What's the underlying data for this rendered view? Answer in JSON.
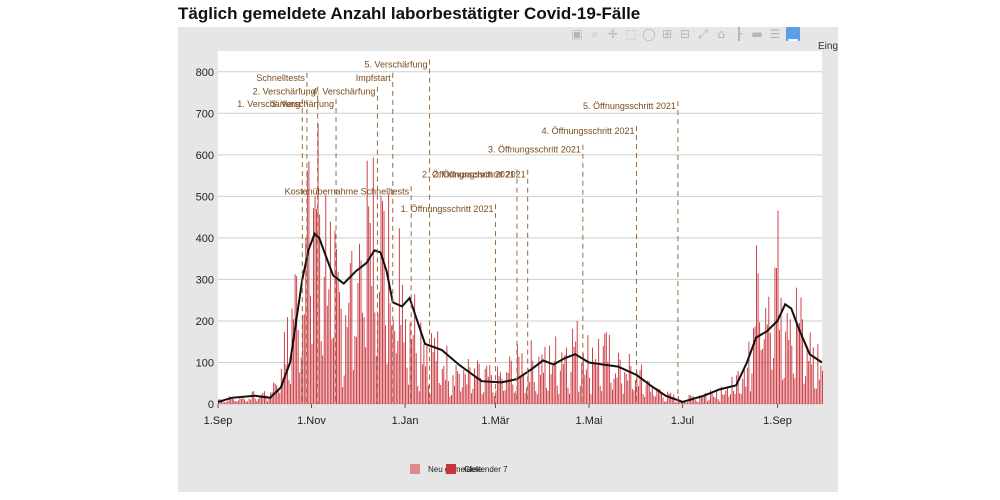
{
  "title": "Täglich gemeldete Anzahl laborbestätigter Covid-19-Fälle",
  "toolbar": {
    "icons": [
      "camera-icon",
      "zoom-icon",
      "pan-icon",
      "box-select-icon",
      "lasso-icon",
      "zoom-in-icon",
      "zoom-out-icon",
      "autoscale-icon",
      "home-icon",
      "spike-lines-icon",
      "hover-closest-icon",
      "hover-compare-icon",
      "plotly-logo-icon"
    ],
    "label": "Eing"
  },
  "colors": {
    "bar": "#c9343c",
    "line": "#111111",
    "annotation": "#9a6a3a",
    "grid": "#cfcfcf",
    "frame": "#e6e6e6"
  },
  "chart_data": {
    "type": "bar",
    "title": "Täglich gemeldete Anzahl laborbestätigter Covid-19-Fälle",
    "x_start": "2020-09-01",
    "x_end": "2021-09-30",
    "ylim": [
      0,
      850
    ],
    "y_ticks": [
      0,
      100,
      200,
      300,
      400,
      500,
      600,
      700,
      800
    ],
    "x_ticks": [
      {
        "date": "2020-09-01",
        "label": "1.Sep"
      },
      {
        "date": "2020-11-01",
        "label": "1.Nov"
      },
      {
        "date": "2021-01-01",
        "label": "1.Jan"
      },
      {
        "date": "2021-03-01",
        "label": "1.Mär"
      },
      {
        "date": "2021-05-01",
        "label": "1.Mai"
      },
      {
        "date": "2021-07-01",
        "label": "1.Jul"
      },
      {
        "date": "2021-09-01",
        "label": "1.Sep"
      }
    ],
    "grid": true,
    "legend_position": "bottom",
    "legend": [
      "Neu gemeldete",
      "Gleitender 7"
    ],
    "series": [
      {
        "name": "Neu gemeldete",
        "kind": "bar",
        "daily_values_keypoints": [
          {
            "date": "2020-09-01",
            "value": 15
          },
          {
            "date": "2020-09-20",
            "value": 25
          },
          {
            "date": "2020-10-05",
            "value": 40
          },
          {
            "date": "2020-10-15",
            "value": 180
          },
          {
            "date": "2020-10-24",
            "value": 420
          },
          {
            "date": "2020-10-30",
            "value": 700
          },
          {
            "date": "2020-11-05",
            "value": 690
          },
          {
            "date": "2020-11-12",
            "value": 500
          },
          {
            "date": "2020-11-20",
            "value": 300
          },
          {
            "date": "2020-12-01",
            "value": 470
          },
          {
            "date": "2020-12-10",
            "value": 640
          },
          {
            "date": "2020-12-15",
            "value": 580
          },
          {
            "date": "2020-12-25",
            "value": 480
          },
          {
            "date": "2021-01-05",
            "value": 300
          },
          {
            "date": "2021-01-15",
            "value": 200
          },
          {
            "date": "2021-02-01",
            "value": 120
          },
          {
            "date": "2021-03-01",
            "value": 80
          },
          {
            "date": "2021-03-20",
            "value": 150
          },
          {
            "date": "2021-04-01",
            "value": 130
          },
          {
            "date": "2021-04-20",
            "value": 200
          },
          {
            "date": "2021-05-10",
            "value": 170
          },
          {
            "date": "2021-06-01",
            "value": 100
          },
          {
            "date": "2021-06-20",
            "value": 30
          },
          {
            "date": "2021-07-01",
            "value": 15
          },
          {
            "date": "2021-07-20",
            "value": 40
          },
          {
            "date": "2021-08-10",
            "value": 80
          },
          {
            "date": "2021-08-20",
            "value": 430
          },
          {
            "date": "2021-09-01",
            "value": 440
          },
          {
            "date": "2021-09-10",
            "value": 330
          },
          {
            "date": "2021-09-20",
            "value": 200
          },
          {
            "date": "2021-09-30",
            "value": 120
          }
        ]
      },
      {
        "name": "Gleitender 7",
        "kind": "line",
        "points": [
          {
            "date": "2020-09-01",
            "value": 5
          },
          {
            "date": "2020-09-10",
            "value": 15
          },
          {
            "date": "2020-09-25",
            "value": 20
          },
          {
            "date": "2020-10-05",
            "value": 15
          },
          {
            "date": "2020-10-12",
            "value": 40
          },
          {
            "date": "2020-10-18",
            "value": 100
          },
          {
            "date": "2020-10-22",
            "value": 200
          },
          {
            "date": "2020-10-26",
            "value": 300
          },
          {
            "date": "2020-10-30",
            "value": 370
          },
          {
            "date": "2020-11-03",
            "value": 410
          },
          {
            "date": "2020-11-06",
            "value": 400
          },
          {
            "date": "2020-11-10",
            "value": 360
          },
          {
            "date": "2020-11-15",
            "value": 310
          },
          {
            "date": "2020-11-22",
            "value": 290
          },
          {
            "date": "2020-11-30",
            "value": 320
          },
          {
            "date": "2020-12-07",
            "value": 340
          },
          {
            "date": "2020-12-12",
            "value": 370
          },
          {
            "date": "2020-12-16",
            "value": 365
          },
          {
            "date": "2020-12-20",
            "value": 320
          },
          {
            "date": "2020-12-24",
            "value": 245
          },
          {
            "date": "2020-12-30",
            "value": 235
          },
          {
            "date": "2021-01-04",
            "value": 255
          },
          {
            "date": "2021-01-09",
            "value": 200
          },
          {
            "date": "2021-01-14",
            "value": 145
          },
          {
            "date": "2021-01-25",
            "value": 130
          },
          {
            "date": "2021-02-05",
            "value": 95
          },
          {
            "date": "2021-02-20",
            "value": 55
          },
          {
            "date": "2021-03-05",
            "value": 52
          },
          {
            "date": "2021-03-15",
            "value": 60
          },
          {
            "date": "2021-03-25",
            "value": 85
          },
          {
            "date": "2021-04-01",
            "value": 105
          },
          {
            "date": "2021-04-08",
            "value": 95
          },
          {
            "date": "2021-04-15",
            "value": 110
          },
          {
            "date": "2021-04-22",
            "value": 120
          },
          {
            "date": "2021-05-01",
            "value": 100
          },
          {
            "date": "2021-05-10",
            "value": 95
          },
          {
            "date": "2021-05-20",
            "value": 90
          },
          {
            "date": "2021-06-01",
            "value": 70
          },
          {
            "date": "2021-06-10",
            "value": 45
          },
          {
            "date": "2021-06-20",
            "value": 20
          },
          {
            "date": "2021-07-01",
            "value": 5
          },
          {
            "date": "2021-07-15",
            "value": 20
          },
          {
            "date": "2021-07-25",
            "value": 35
          },
          {
            "date": "2021-08-05",
            "value": 45
          },
          {
            "date": "2021-08-12",
            "value": 100
          },
          {
            "date": "2021-08-18",
            "value": 160
          },
          {
            "date": "2021-08-25",
            "value": 175
          },
          {
            "date": "2021-09-01",
            "value": 200
          },
          {
            "date": "2021-09-06",
            "value": 240
          },
          {
            "date": "2021-09-10",
            "value": 230
          },
          {
            "date": "2021-09-15",
            "value": 180
          },
          {
            "date": "2021-09-22",
            "value": 120
          },
          {
            "date": "2021-09-30",
            "value": 100
          }
        ]
      }
    ],
    "annotations": [
      {
        "date": "2020-10-26",
        "label": "1. Verschärfung",
        "label_value": 715
      },
      {
        "date": "2020-11-05",
        "label": "2. Verschärfung",
        "label_value": 745
      },
      {
        "date": "2020-10-29",
        "label": "Schnelltests",
        "label_value": 778
      },
      {
        "date": "2020-11-17",
        "label": "3. Verschärfung",
        "label_value": 715
      },
      {
        "date": "2020-12-14",
        "label": "4. Verschärfung",
        "label_value": 745
      },
      {
        "date": "2020-12-24",
        "label": "Impfstart",
        "label_value": 778
      },
      {
        "date": "2021-01-17",
        "label": "5. Verschärfung",
        "label_value": 810
      },
      {
        "date": "2021-01-05",
        "label": "Kostenübernahme Schnelltests",
        "label_value": 505
      },
      {
        "date": "2021-03-01",
        "label": "1. Öffnungsschritt 2021",
        "label_value": 462
      },
      {
        "date": "2021-03-15",
        "label": "2. Öffnungsschritt 2021",
        "label_value": 545
      },
      {
        "date": "2021-03-22",
        "label": "2. Öffnungsschritt 2021",
        "label_value": 545
      },
      {
        "date": "2021-04-27",
        "label": "3. Öffnungsschritt 2021",
        "label_value": 605
      },
      {
        "date": "2021-06-01",
        "label": "4. Öffnungsschritt 2021",
        "label_value": 650
      },
      {
        "date": "2021-06-28",
        "label": "5. Öffnungsschritt 2021",
        "label_value": 710
      }
    ]
  }
}
